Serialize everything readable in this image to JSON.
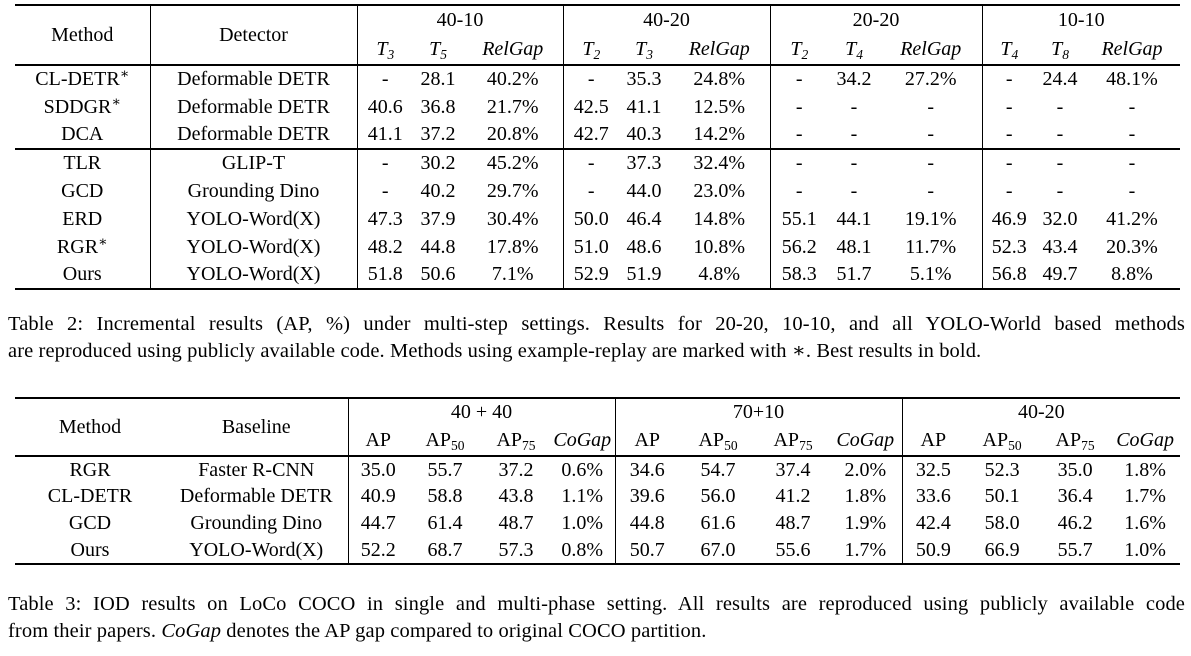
{
  "table2": {
    "headers": {
      "method": "Method",
      "detector": "Detector"
    },
    "groups": [
      {
        "title": "40-10",
        "cols": [
          {
            "t": "T",
            "s": "3",
            "i": true
          },
          {
            "t": "T",
            "s": "5",
            "i": true
          },
          {
            "t": "RelGap",
            "i": true
          }
        ]
      },
      {
        "title": "40-20",
        "cols": [
          {
            "t": "T",
            "s": "2",
            "i": true
          },
          {
            "t": "T",
            "s": "3",
            "i": true
          },
          {
            "t": "RelGap",
            "i": true
          }
        ]
      },
      {
        "title": "20-20",
        "cols": [
          {
            "t": "T",
            "s": "2",
            "i": true
          },
          {
            "t": "T",
            "s": "4",
            "i": true
          },
          {
            "t": "RelGap",
            "i": true
          }
        ]
      },
      {
        "title": "10-10",
        "cols": [
          {
            "t": "T",
            "s": "4",
            "i": true
          },
          {
            "t": "T",
            "s": "8",
            "i": true
          },
          {
            "t": "RelGap",
            "i": true
          }
        ]
      }
    ],
    "sections": [
      {
        "rows": [
          {
            "method": "CL-DETR",
            "sup": "∗",
            "detector": "Deformable DETR",
            "values": [
              "-",
              "28.1",
              "40.2%",
              "-",
              "35.3",
              "24.8%",
              "-",
              "34.2",
              "27.2%",
              "-",
              "24.4",
              "48.1%"
            ]
          },
          {
            "method": "SDDGR",
            "sup": "∗",
            "detector": "Deformable DETR",
            "values": [
              "40.6",
              "36.8",
              "21.7%",
              "42.5",
              "41.1",
              "12.5%",
              "-",
              "-",
              "-",
              "-",
              "-",
              "-"
            ]
          },
          {
            "method": "DCA",
            "detector": "Deformable DETR",
            "values": [
              "41.1",
              "37.2",
              "20.8%",
              "42.7",
              "40.3",
              "14.2%",
              "-",
              "-",
              "-",
              "-",
              "-",
              "-"
            ]
          }
        ]
      },
      {
        "rows": [
          {
            "method": "TLR",
            "detector": "GLIP-T",
            "values": [
              "-",
              "30.2",
              "45.2%",
              "-",
              "37.3",
              "32.4%",
              "-",
              "-",
              "-",
              "-",
              "-",
              "-"
            ]
          },
          {
            "method": "GCD",
            "detector": "Grounding Dino",
            "values": [
              "-",
              "40.2",
              "29.7%",
              "-",
              "44.0",
              "23.0%",
              "-",
              "-",
              "-",
              "-",
              "-",
              "-"
            ]
          },
          {
            "method": "ERD",
            "detector": "YOLO-Word(X)",
            "values": [
              "47.3",
              "37.9",
              "30.4%",
              "50.0",
              "46.4",
              "14.8%",
              "55.1",
              "44.1",
              "19.1%",
              "46.9",
              "32.0",
              "41.2%"
            ]
          },
          {
            "method": "RGR",
            "sup": "∗",
            "detector": "YOLO-Word(X)",
            "values": [
              "48.2",
              "44.8",
              "17.8%",
              "51.0",
              "48.6",
              "10.8%",
              "56.2",
              "48.1",
              "11.7%",
              "52.3",
              "43.4",
              "20.3%"
            ]
          },
          {
            "method": "Ours",
            "method_bold": true,
            "detector": "YOLO-Word(X)",
            "values": [
              "51.8",
              "50.6",
              "7.1%",
              "52.9",
              "51.9",
              "4.8%",
              "58.3",
              "51.7",
              "5.1%",
              "56.8",
              "49.7",
              "8.8%"
            ],
            "bold": "all"
          }
        ]
      }
    ],
    "caption": {
      "lines": [
        [
          {
            "t": "Table 2: Incremental results (AP, %) under multi-step settings. Results for 20-20, 10-10, and all YOLO-World based methods"
          }
        ],
        [
          {
            "t": "are reproduced using publicly available code. Methods using example-replay are marked with ∗. Best results in bold."
          }
        ]
      ]
    }
  },
  "table3": {
    "headers": {
      "method": "Method",
      "baseline": "Baseline"
    },
    "groups": [
      {
        "title": "40 + 40",
        "cols": [
          {
            "t": "AP"
          },
          {
            "t": "AP",
            "s": "50"
          },
          {
            "t": "AP",
            "s": "75"
          },
          {
            "t": "CoGap",
            "i": true
          }
        ]
      },
      {
        "title": "70+10",
        "cols": [
          {
            "t": "AP"
          },
          {
            "t": "AP",
            "s": "50"
          },
          {
            "t": "AP",
            "s": "75"
          },
          {
            "t": "CoGap",
            "i": true
          }
        ]
      },
      {
        "title": "40-20",
        "cols": [
          {
            "t": "AP"
          },
          {
            "t": "AP",
            "s": "50"
          },
          {
            "t": "AP",
            "s": "75"
          },
          {
            "t": "CoGap",
            "i": true
          }
        ]
      }
    ],
    "sections": [
      {
        "rows": [
          {
            "method": "RGR",
            "baseline": "Faster R-CNN",
            "values": [
              "35.0",
              "55.7",
              "37.2",
              "0.6%",
              "34.6",
              "54.7",
              "37.4",
              "2.0%",
              "32.5",
              "52.3",
              "35.0",
              "1.8%"
            ],
            "bold": [
              3
            ]
          },
          {
            "method": "CL-DETR",
            "baseline": "Deformable DETR",
            "values": [
              "40.9",
              "58.8",
              "43.8",
              "1.1%",
              "39.6",
              "56.0",
              "41.2",
              "1.8%",
              "33.6",
              "50.1",
              "36.4",
              "1.7%"
            ],
            "bold": []
          },
          {
            "method": "GCD",
            "baseline": "Grounding Dino",
            "values": [
              "44.7",
              "61.4",
              "48.7",
              "1.0%",
              "44.8",
              "61.6",
              "48.7",
              "1.9%",
              "42.4",
              "58.0",
              "46.2",
              "1.6%"
            ],
            "bold": []
          },
          {
            "method": "Ours",
            "method_bold": true,
            "baseline": "YOLO-Word(X)",
            "values": [
              "52.2",
              "68.7",
              "57.3",
              "0.8%",
              "50.7",
              "67.0",
              "55.6",
              "1.7%",
              "50.9",
              "66.9",
              "55.7",
              "1.0%"
            ],
            "bold": [
              0,
              1,
              2,
              4,
              5,
              6,
              7,
              8,
              9,
              10,
              11
            ]
          }
        ]
      }
    ],
    "caption": {
      "lines": [
        [
          {
            "t": "Table 3: IOD results on LoCo COCO in single and multi-phase setting. All results are reproduced using publicly available code"
          }
        ],
        [
          {
            "t": "from their papers. "
          },
          {
            "t": "CoGap",
            "i": true
          },
          {
            "t": " denotes the AP gap compared to original COCO partition."
          }
        ]
      ]
    }
  }
}
